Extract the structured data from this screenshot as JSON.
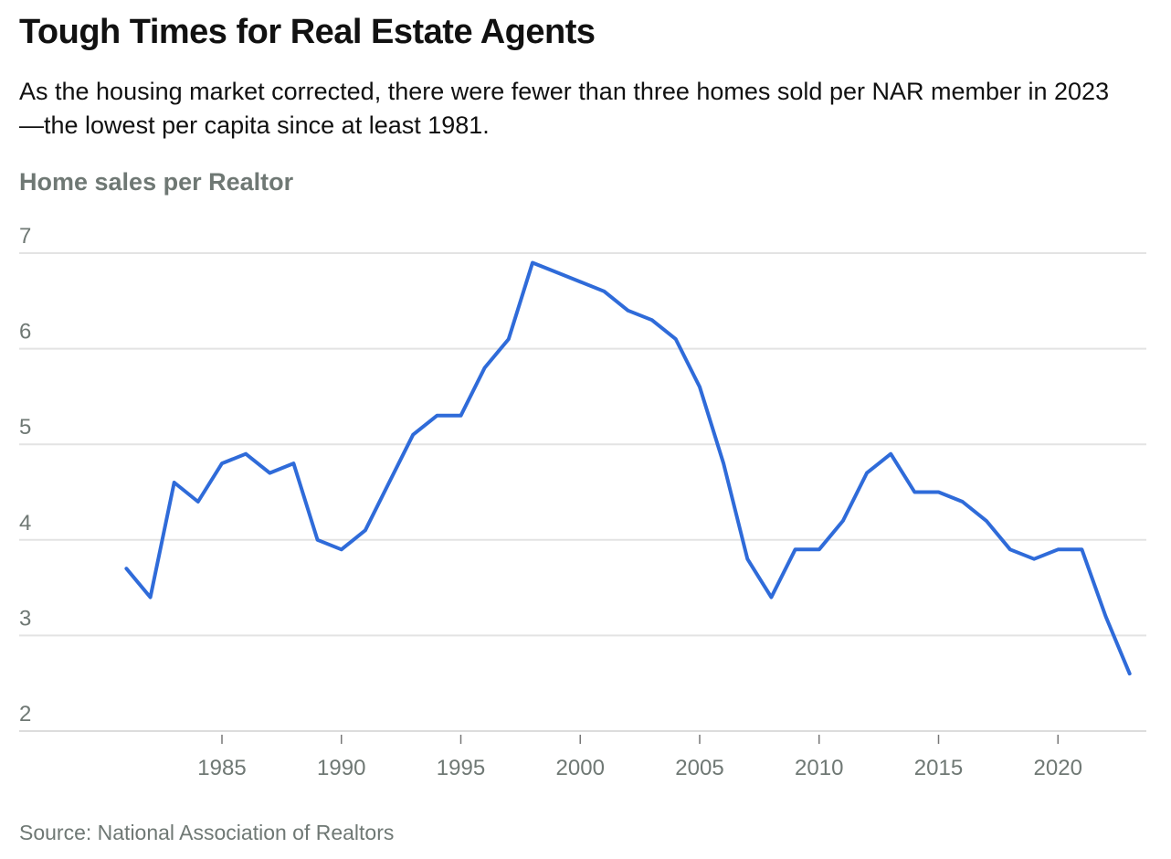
{
  "chart_data": {
    "type": "line",
    "title": "Tough Times for Real Estate Agents",
    "subtitle": "As the housing market corrected, there were fewer than three homes sold per NAR member in 2023—the lowest per capita since at least 1981.",
    "ylabel": "Home sales per Realtor",
    "xlabel": "",
    "source": "Source: National Association of Realtors",
    "ylim": [
      2,
      7
    ],
    "xlim": [
      1980,
      2024
    ],
    "yticks": [
      2,
      3,
      4,
      5,
      6,
      7
    ],
    "xticks": [
      1985,
      1990,
      1995,
      2000,
      2005,
      2010,
      2015,
      2020
    ],
    "grid": true,
    "series": [
      {
        "name": "Home sales per Realtor",
        "color": "#2f6bd9",
        "x": [
          1981,
          1982,
          1983,
          1984,
          1985,
          1986,
          1987,
          1988,
          1989,
          1990,
          1991,
          1992,
          1993,
          1994,
          1995,
          1996,
          1997,
          1998,
          1999,
          2000,
          2001,
          2002,
          2003,
          2004,
          2005,
          2006,
          2007,
          2008,
          2009,
          2010,
          2011,
          2012,
          2013,
          2014,
          2015,
          2016,
          2017,
          2018,
          2019,
          2020,
          2021,
          2022,
          2023
        ],
        "values": [
          3.7,
          3.4,
          4.6,
          4.4,
          4.8,
          4.9,
          4.7,
          4.8,
          4.0,
          3.9,
          4.1,
          4.6,
          5.1,
          5.3,
          5.3,
          5.8,
          6.1,
          6.9,
          6.8,
          6.7,
          6.6,
          6.4,
          6.3,
          6.1,
          5.6,
          4.8,
          3.8,
          3.4,
          3.9,
          3.9,
          4.2,
          4.7,
          4.9,
          4.5,
          4.5,
          4.4,
          4.2,
          3.9,
          3.8,
          3.9,
          3.9,
          3.2,
          2.6
        ]
      }
    ]
  }
}
